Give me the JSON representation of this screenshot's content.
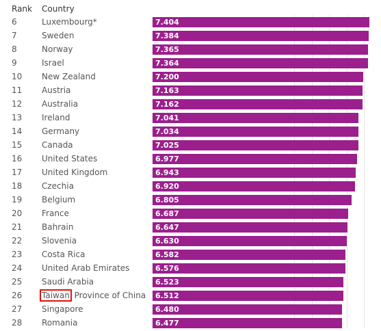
{
  "header": {
    "rank": "Rank",
    "country": "Country"
  },
  "highlight": {
    "row": 20,
    "word": "Taiwan",
    "rest": " Province of China",
    "color": "#e01010"
  },
  "bar_color": "#9b1f8d",
  "chart_data": {
    "type": "bar",
    "orientation": "horizontal",
    "xlim": [
      0,
      7.45
    ],
    "grid": true,
    "rows": [
      {
        "rank": "6",
        "country": "Luxembourg*",
        "value": 7.404,
        "label": "7.404"
      },
      {
        "rank": "7",
        "country": "Sweden",
        "value": 7.384,
        "label": "7.384"
      },
      {
        "rank": "8",
        "country": "Norway",
        "value": 7.365,
        "label": "7.365"
      },
      {
        "rank": "9",
        "country": "Israel",
        "value": 7.364,
        "label": "7.364"
      },
      {
        "rank": "10",
        "country": "New Zealand",
        "value": 7.2,
        "label": "7.200"
      },
      {
        "rank": "11",
        "country": "Austria",
        "value": 7.163,
        "label": "7.163"
      },
      {
        "rank": "12",
        "country": "Australia",
        "value": 7.162,
        "label": "7.162"
      },
      {
        "rank": "13",
        "country": "Ireland",
        "value": 7.041,
        "label": "7.041"
      },
      {
        "rank": "14",
        "country": "Germany",
        "value": 7.034,
        "label": "7.034"
      },
      {
        "rank": "15",
        "country": "Canada",
        "value": 7.025,
        "label": "7.025"
      },
      {
        "rank": "16",
        "country": "United States",
        "value": 6.977,
        "label": "6.977"
      },
      {
        "rank": "17",
        "country": "United Kingdom",
        "value": 6.943,
        "label": "6.943"
      },
      {
        "rank": "18",
        "country": "Czechia",
        "value": 6.92,
        "label": "6.920"
      },
      {
        "rank": "19",
        "country": "Belgium",
        "value": 6.805,
        "label": "6.805"
      },
      {
        "rank": "20",
        "country": "France",
        "value": 6.687,
        "label": "6.687"
      },
      {
        "rank": "21",
        "country": "Bahrain",
        "value": 6.647,
        "label": "6.647"
      },
      {
        "rank": "22",
        "country": "Slovenia",
        "value": 6.63,
        "label": "6.630"
      },
      {
        "rank": "23",
        "country": "Costa Rica",
        "value": 6.582,
        "label": "6.582"
      },
      {
        "rank": "24",
        "country": "United Arab Emirates",
        "value": 6.576,
        "label": "6.576"
      },
      {
        "rank": "25",
        "country": "Saudi Arabia",
        "value": 6.523,
        "label": "6.523"
      },
      {
        "rank": "26",
        "country": "Taiwan Province of China",
        "value": 6.512,
        "label": "6.512"
      },
      {
        "rank": "27",
        "country": "Singapore",
        "value": 6.48,
        "label": "6.480"
      },
      {
        "rank": "28",
        "country": "Romania",
        "value": 6.477,
        "label": "6.477"
      }
    ]
  }
}
